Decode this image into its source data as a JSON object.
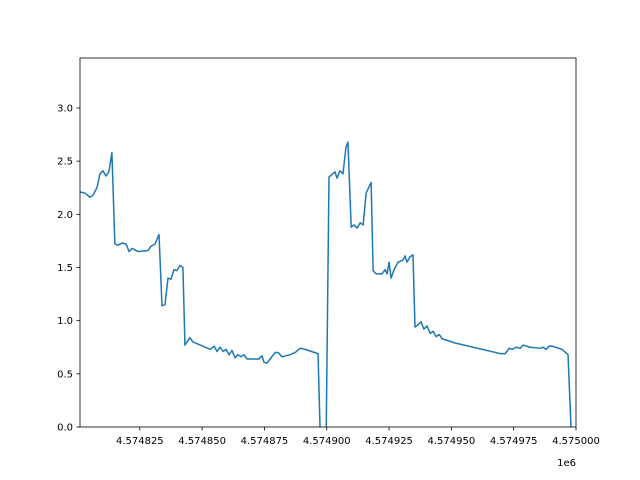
{
  "chart_data": {
    "type": "line",
    "color": "#1f77b4",
    "offset_text": "1e6",
    "x": [
      4574801.0,
      4574803.0,
      4574805.0,
      4574806.2,
      4574807.8,
      4574809.0,
      4574810.2,
      4574811.4,
      4574812.6,
      4574813.8,
      4574815.0,
      4574816.2,
      4574817.9,
      4574819.5,
      4574820.7,
      4574821.9,
      4574824.3,
      4574828.3,
      4574829.5,
      4574831.1,
      4574832.7,
      4574833.9,
      4574835.1,
      4574836.3,
      4574837.5,
      4574838.7,
      4574839.9,
      4574841.1,
      4574842.3,
      4574843.1,
      4574845.1,
      4574846.3,
      4574853.2,
      4574854.8,
      4574856.0,
      4574857.2,
      4574858.4,
      4574859.6,
      4574860.8,
      4574862.0,
      4574863.2,
      4574864.4,
      4574865.6,
      4574866.8,
      4574868.0,
      4574872.8,
      4574874.0,
      4574874.8,
      4574876.0,
      4574877.6,
      4574879.3,
      4574880.5,
      4574882.1,
      4574885.3,
      4574887.3,
      4574889.3,
      4574891.3,
      4574896.5,
      4574897.3,
      4574898.1,
      4574899.7,
      4574900.9,
      4574903.3,
      4574904.1,
      4574905.3,
      4574906.5,
      4574907.7,
      4574908.5,
      4574909.8,
      4574911.0,
      4574912.2,
      4574913.4,
      4574914.6,
      4574915.8,
      4574917.8,
      4574918.6,
      4574919.8,
      4574922.2,
      4574923.4,
      4574924.2,
      4574925.0,
      4574925.8,
      4574927.0,
      4574928.6,
      4574930.6,
      4574931.4,
      4574932.2,
      4574933.4,
      4574934.6,
      4574935.4,
      4574936.6,
      4574937.8,
      4574939.0,
      4574940.2,
      4574941.5,
      4574942.7,
      4574943.9,
      4574945.1,
      4574946.3,
      4574951.5,
      4574967.9,
      4574969.5,
      4574971.6,
      4574973.2,
      4574974.4,
      4574976.0,
      4574977.6,
      4574978.8,
      4574981.6,
      4574985.6,
      4574986.8,
      4574988.0,
      4574989.2,
      4574990.4,
      4574994.4,
      4574996.8,
      4574998.0,
      4574998.8
    ],
    "values": [
      2.21,
      2.2,
      2.16,
      2.18,
      2.25,
      2.38,
      2.41,
      2.36,
      2.4,
      2.58,
      1.72,
      1.71,
      1.73,
      1.72,
      1.65,
      1.68,
      1.65,
      1.66,
      1.7,
      1.72,
      1.81,
      1.14,
      1.15,
      1.4,
      1.39,
      1.48,
      1.47,
      1.52,
      1.5,
      0.77,
      0.84,
      0.8,
      0.73,
      0.76,
      0.71,
      0.75,
      0.71,
      0.73,
      0.68,
      0.72,
      0.65,
      0.68,
      0.66,
      0.68,
      0.64,
      0.64,
      0.67,
      0.61,
      0.6,
      0.65,
      0.7,
      0.7,
      0.66,
      0.68,
      0.7,
      0.74,
      0.73,
      0.69,
      0.0,
      -0.2,
      -0.2,
      2.35,
      2.4,
      2.34,
      2.41,
      2.38,
      2.63,
      2.68,
      1.88,
      1.9,
      1.87,
      1.92,
      1.9,
      2.2,
      2.3,
      1.47,
      1.44,
      1.44,
      1.48,
      1.44,
      1.55,
      1.4,
      1.48,
      1.55,
      1.57,
      1.61,
      1.55,
      1.6,
      1.62,
      0.94,
      0.96,
      0.99,
      0.92,
      0.95,
      0.88,
      0.9,
      0.85,
      0.87,
      0.83,
      0.79,
      0.7,
      0.69,
      0.69,
      0.74,
      0.73,
      0.75,
      0.74,
      0.77,
      0.75,
      0.74,
      0.75,
      0.73,
      0.76,
      0.76,
      0.73,
      0.68,
      0.0,
      -0.2
    ],
    "xlim": [
      4574801,
      4575000
    ],
    "xticks": [
      {
        "value": 4574825,
        "label": "4.574825"
      },
      {
        "value": 4574850,
        "label": "4.574850"
      },
      {
        "value": 4574875,
        "label": "4.574875"
      },
      {
        "value": 4574900,
        "label": "4.574900"
      },
      {
        "value": 4574925,
        "label": "4.574925"
      },
      {
        "value": 4574950,
        "label": "4.574950"
      },
      {
        "value": 4574975,
        "label": "4.574975"
      },
      {
        "value": 4575000,
        "label": "4.575000"
      }
    ],
    "ylim": [
      0,
      3.47
    ],
    "yticks": [
      {
        "value": 0,
        "label": "0.0"
      },
      0.5,
      {
        "value": 1,
        "label": "1.0"
      },
      1.5,
      {
        "value": 2,
        "label": "2.0"
      },
      2.5,
      {
        "value": 3,
        "label": "3.0"
      }
    ]
  }
}
